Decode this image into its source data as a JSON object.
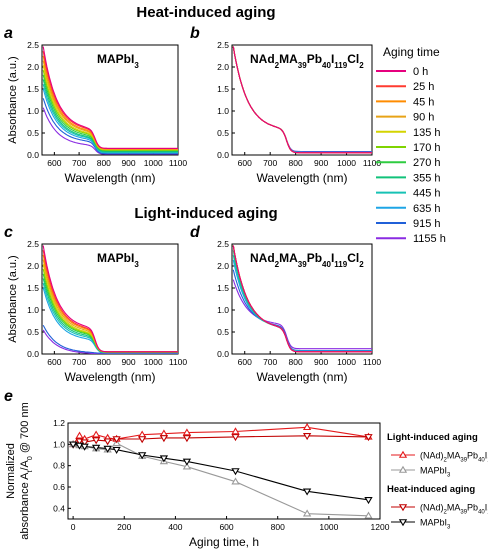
{
  "headings": {
    "heat": "Heat-induced aging",
    "light": "Light-induced aging"
  },
  "colors": {
    "axis": "#000000",
    "light_aging": "#e41a1c",
    "heat_aging_maph": "#999999",
    "heat_aging_nad": "#c00000",
    "light_maph": "#000000"
  },
  "legend_aging": {
    "title": "Aging time",
    "entries": [
      {
        "label": "0 h",
        "color": "#e6007e"
      },
      {
        "label": "25 h",
        "color": "#ff3b30"
      },
      {
        "label": "45 h",
        "color": "#ff8c00"
      },
      {
        "label": "90 h",
        "color": "#e8a317"
      },
      {
        "label": "135 h",
        "color": "#d4d400"
      },
      {
        "label": "170 h",
        "color": "#7fd400"
      },
      {
        "label": "270 h",
        "color": "#2ecc40"
      },
      {
        "label": "355 h",
        "color": "#11c27a"
      },
      {
        "label": "445 h",
        "color": "#17c2b5"
      },
      {
        "label": "635 h",
        "color": "#1ea5e6"
      },
      {
        "label": "915 h",
        "color": "#2060d8"
      },
      {
        "label": "1155 h",
        "color": "#8a2be2"
      }
    ]
  },
  "chart_data": [
    {
      "id": "a",
      "type": "line",
      "panel_letter": "a",
      "label_main": "MAPbI",
      "label_sub": "3",
      "xlabel": "Wavelength (nm)",
      "ylabel": "Absorbance (a.u.)",
      "xlim": [
        550,
        1100
      ],
      "ylim": [
        0,
        2.5
      ],
      "xticks": [
        "600",
        "700",
        "800",
        "900",
        "1000",
        "1100"
      ],
      "yticks": [
        "0.0",
        "0.5",
        "1.0",
        "1.5",
        "2.0",
        "2.5"
      ],
      "spectra_a0": [
        2.3,
        2.2,
        2.1,
        2.0,
        1.9,
        1.8,
        1.7,
        1.6,
        1.5,
        1.4,
        1.2,
        1.0
      ],
      "spectra_b0": [
        0.55,
        0.53,
        0.5,
        0.48,
        0.45,
        0.43,
        0.4,
        0.37,
        0.35,
        0.32,
        0.28,
        0.2
      ],
      "tail": [
        0.15,
        0.15,
        0.14,
        0.13,
        0.12,
        0.11,
        0.1,
        0.08,
        0.06,
        0.05,
        0.03,
        0.02
      ]
    },
    {
      "id": "b",
      "type": "line",
      "panel_letter": "b",
      "label_main": "NAd",
      "label_parts": [
        [
          "NAd",
          ""
        ],
        [
          "2",
          "sub"
        ],
        [
          "MA",
          ""
        ],
        [
          "39",
          "sub"
        ],
        [
          "Pb",
          ""
        ],
        [
          "40",
          "sub"
        ],
        [
          "I",
          ""
        ],
        [
          "119",
          "sub"
        ],
        [
          "Cl",
          ""
        ],
        [
          "2",
          "sub"
        ]
      ],
      "xlabel": "Wavelength (nm)",
      "ylabel": "",
      "xlim": [
        550,
        1100
      ],
      "ylim": [
        0,
        2.5
      ],
      "xticks": [
        "600",
        "700",
        "800",
        "900",
        "1000",
        "1100"
      ],
      "yticks": [
        "0.0",
        "0.5",
        "1.0",
        "1.5",
        "2.0",
        "2.5"
      ],
      "spectra_a0": [
        2.3,
        2.3,
        2.3,
        2.3,
        2.3,
        2.3,
        2.3,
        2.3,
        2.3,
        2.3,
        2.3,
        2.3
      ],
      "spectra_b0": [
        0.55,
        0.55,
        0.55,
        0.55,
        0.55,
        0.55,
        0.55,
        0.55,
        0.55,
        0.55,
        0.55,
        0.55
      ],
      "tail": [
        0.05,
        0.05,
        0.05,
        0.05,
        0.05,
        0.05,
        0.05,
        0.05,
        0.06,
        0.06,
        0.07,
        0.08
      ]
    },
    {
      "id": "c",
      "type": "line",
      "panel_letter": "c",
      "label_main": "MAPbI",
      "label_sub": "3",
      "xlabel": "Wavelength (nm)",
      "ylabel": "Absorbance (a.u.)",
      "xlim": [
        550,
        1100
      ],
      "ylim": [
        0,
        2.5
      ],
      "xticks": [
        "600",
        "700",
        "800",
        "900",
        "1000",
        "1100"
      ],
      "yticks": [
        "0.0",
        "0.5",
        "1.0",
        "1.5",
        "2.0",
        "2.5"
      ],
      "spectra_a0": [
        2.3,
        2.2,
        2.1,
        2.0,
        1.9,
        1.8,
        1.7,
        1.6,
        1.5,
        1.4,
        0.6,
        0.5
      ],
      "spectra_b0": [
        0.55,
        0.52,
        0.5,
        0.47,
        0.44,
        0.42,
        0.4,
        0.37,
        0.34,
        0.3,
        0.02,
        0.0
      ],
      "tail": [
        0.05,
        0.05,
        0.05,
        0.05,
        0.05,
        0.04,
        0.04,
        0.04,
        0.03,
        0.03,
        0.02,
        0.0
      ]
    },
    {
      "id": "d",
      "type": "line",
      "panel_letter": "d",
      "label_parts": [
        [
          "NAd",
          ""
        ],
        [
          "2",
          "sub"
        ],
        [
          "MA",
          ""
        ],
        [
          "39",
          "sub"
        ],
        [
          "Pb",
          ""
        ],
        [
          "40",
          "sub"
        ],
        [
          "I",
          ""
        ],
        [
          "119",
          "sub"
        ],
        [
          "Cl",
          ""
        ],
        [
          "2",
          "sub"
        ]
      ],
      "xlabel": "Wavelength (nm)",
      "ylabel": "",
      "xlim": [
        550,
        1100
      ],
      "ylim": [
        0,
        2.5
      ],
      "xticks": [
        "600",
        "700",
        "800",
        "900",
        "1000",
        "1100"
      ],
      "yticks": [
        "0.0",
        "0.5",
        "1.0",
        "1.5",
        "2.0",
        "2.5"
      ],
      "spectra_a0": [
        2.3,
        2.3,
        2.3,
        2.3,
        2.3,
        2.3,
        2.3,
        2.2,
        2.1,
        2.0,
        1.8,
        1.6
      ],
      "spectra_b0": [
        0.55,
        0.55,
        0.55,
        0.55,
        0.55,
        0.55,
        0.55,
        0.55,
        0.56,
        0.57,
        0.6,
        0.65
      ],
      "tail": [
        0.05,
        0.05,
        0.05,
        0.05,
        0.05,
        0.05,
        0.05,
        0.05,
        0.06,
        0.07,
        0.08,
        0.12
      ]
    },
    {
      "id": "e",
      "type": "line",
      "panel_letter": "e",
      "xlabel": "Aging time, h",
      "ylabel_line1": "Normalized",
      "ylabel_line2": "absorbance A",
      "ylabel_sub1": "t",
      "ylabel_mid": "/A",
      "ylabel_sub2": "0",
      "ylabel_tail": " @ 700 nm",
      "xlim": [
        -20,
        1200
      ],
      "ylim": [
        0.3,
        1.2
      ],
      "xticks": [
        "0",
        "200",
        "400",
        "600",
        "800",
        "1000",
        "1200"
      ],
      "yticks": [
        "0.4",
        "0.6",
        "0.8",
        "1.0",
        "1.2"
      ],
      "x": [
        0,
        25,
        45,
        90,
        135,
        170,
        270,
        355,
        445,
        635,
        915,
        1155
      ],
      "series": [
        {
          "key": "light_nad",
          "values": [
            1.0,
            1.08,
            1.05,
            1.09,
            1.06,
            1.05,
            1.09,
            1.1,
            1.11,
            1.12,
            1.16,
            1.07
          ],
          "marker": "up",
          "color": "#e41a1c"
        },
        {
          "key": "light_maph",
          "values": [
            1.0,
            0.99,
            0.98,
            0.96,
            0.95,
            1.01,
            0.89,
            0.84,
            0.79,
            0.65,
            0.35,
            0.33
          ],
          "marker": "up",
          "color": "#999999"
        },
        {
          "key": "heat_nad",
          "values": [
            1.0,
            1.03,
            1.02,
            1.04,
            1.03,
            1.05,
            1.05,
            1.06,
            1.06,
            1.07,
            1.08,
            1.07
          ],
          "marker": "down",
          "color": "#c00000"
        },
        {
          "key": "heat_maph",
          "values": [
            1.0,
            0.99,
            0.98,
            0.97,
            0.96,
            0.95,
            0.9,
            0.87,
            0.84,
            0.75,
            0.56,
            0.48
          ],
          "marker": "down",
          "color": "#000000"
        }
      ],
      "legend": {
        "light_title": "Light-induced aging",
        "heat_title": "Heat-induced aging",
        "nad_label_parts": [
          [
            "(NAd)",
            ""
          ],
          [
            "2",
            "sub"
          ],
          [
            "MA",
            ""
          ],
          [
            "39",
            "sub"
          ],
          [
            "Pb",
            ""
          ],
          [
            "40",
            "sub"
          ],
          [
            "I",
            ""
          ],
          [
            "119",
            "sub"
          ],
          [
            "Cl",
            ""
          ],
          [
            "2",
            "sub"
          ]
        ],
        "maph_main": "MAPbI",
        "maph_sub": "3"
      }
    }
  ]
}
